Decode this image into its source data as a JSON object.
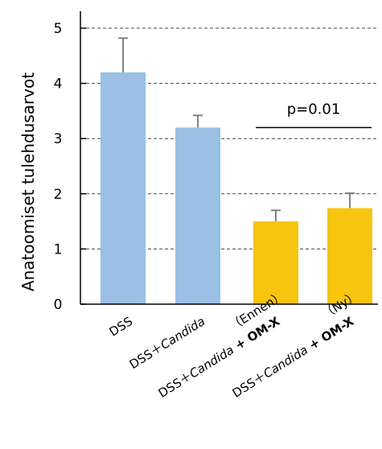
{
  "chart_data": {
    "type": "bar",
    "title": "",
    "xlabel": "",
    "ylabel": "Anatoomiset tulehdusarvot",
    "ylim": [
      0,
      5
    ],
    "yticks": [
      0,
      1,
      2,
      3,
      4,
      5
    ],
    "grid": "dashed horizontal",
    "categories": [
      "DSS",
      "DSS＋Candida",
      "DSS＋Candida + OM-X （Ennen）",
      "DSS＋Candida + OM-X （Ny）"
    ],
    "category_labels": [
      {
        "line1": [
          {
            "t": "DSS",
            "s": "n"
          }
        ],
        "line2": []
      },
      {
        "line1": [
          {
            "t": "DSS＋",
            "s": "n"
          },
          {
            "t": "Candida",
            "s": "i"
          }
        ],
        "line2": []
      },
      {
        "line1": [
          {
            "t": "DSS＋",
            "s": "n"
          },
          {
            "t": "Candida",
            "s": "i"
          },
          {
            "t": " + OM-X",
            "s": "b"
          }
        ],
        "line2": [
          {
            "t": "（Ennen）",
            "s": "n"
          }
        ]
      },
      {
        "line1": [
          {
            "t": "DSS＋",
            "s": "n"
          },
          {
            "t": "Candida",
            "s": "i"
          },
          {
            "t": " + OM-X",
            "s": "b"
          }
        ],
        "line2": [
          {
            "t": "（Ny）",
            "s": "n"
          }
        ]
      }
    ],
    "values": [
      4.2,
      3.2,
      1.5,
      1.74
    ],
    "errors": [
      0.62,
      0.22,
      0.2,
      0.27
    ],
    "colors": [
      "#9bbfe5",
      "#9bbfe5",
      "#f7c40f",
      "#f7c40f"
    ],
    "annotation": {
      "text": "p=0.01",
      "between": [
        2,
        3
      ],
      "y": 3.2
    }
  }
}
